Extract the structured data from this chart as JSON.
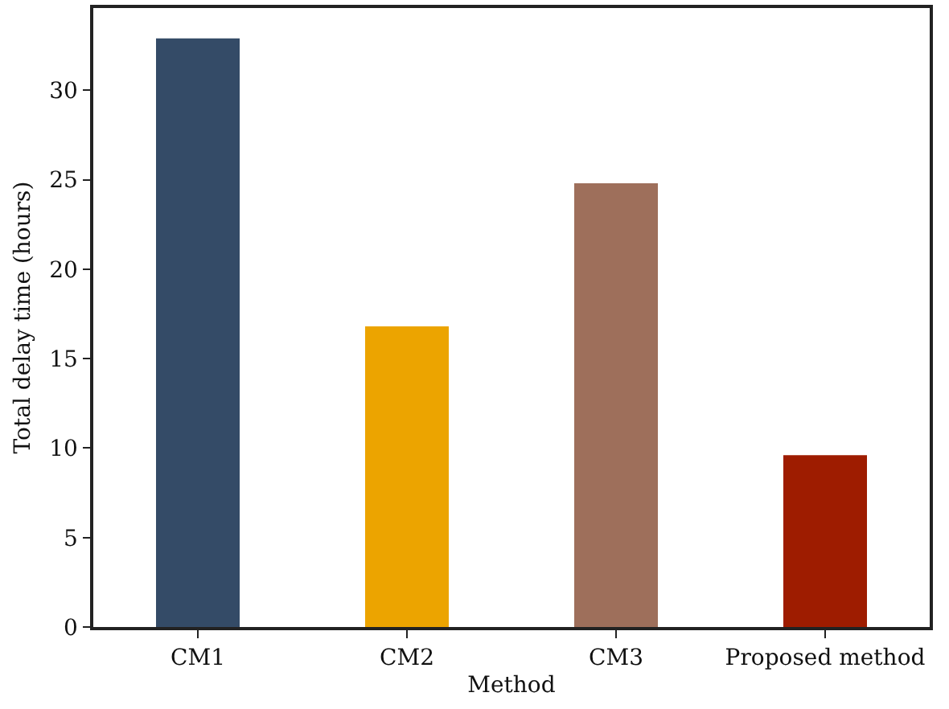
{
  "chart_data": {
    "type": "bar",
    "xlabel": "Method",
    "ylabel": "Total delay time (hours)",
    "categories": [
      "CM1",
      "CM2",
      "CM3",
      "Proposed method"
    ],
    "values": [
      32.9,
      16.8,
      24.8,
      9.6
    ],
    "colors": [
      "#344b67",
      "#eca400",
      "#9e6f5b",
      "#9e1c00"
    ],
    "ylim": [
      0,
      34.6
    ],
    "yticks": [
      0,
      5,
      10,
      15,
      20,
      25,
      30
    ]
  }
}
